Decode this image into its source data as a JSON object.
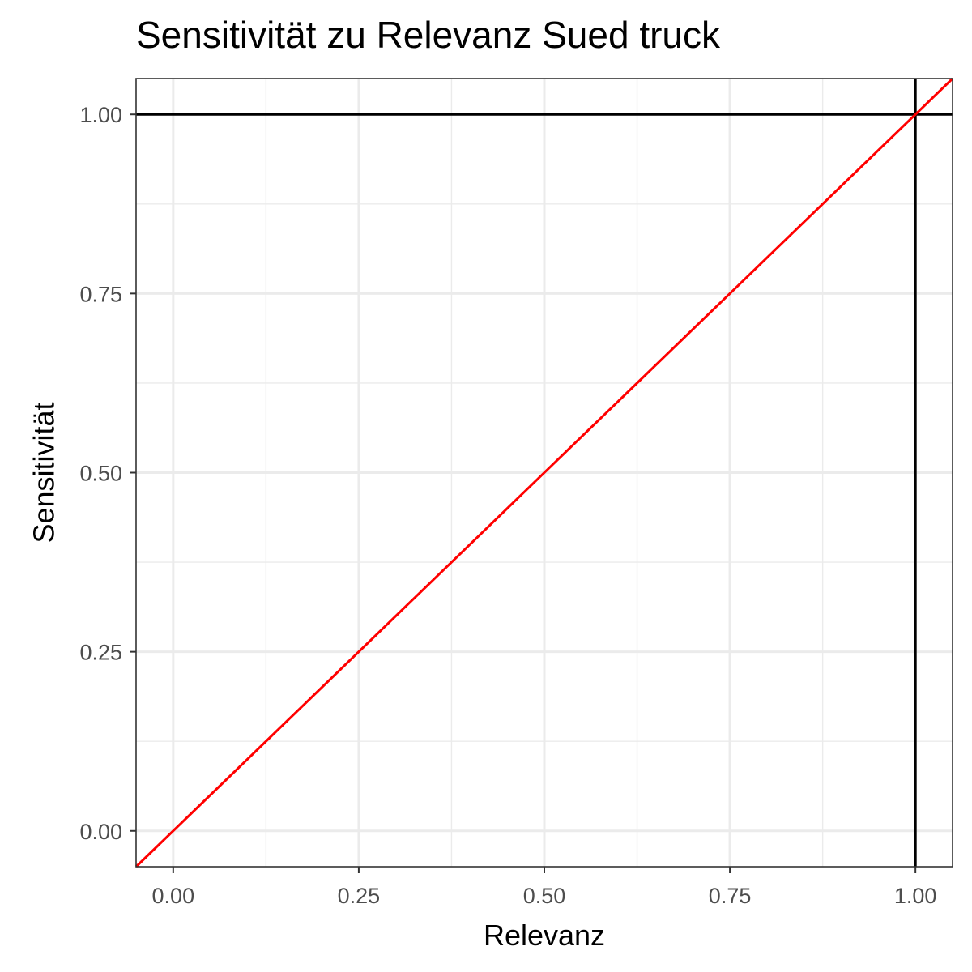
{
  "chart_data": {
    "type": "line",
    "title": "Sensitivität zu Relevanz Sued truck",
    "xlabel": "Relevanz",
    "ylabel": "Sensitivität",
    "xlim": [
      -0.05,
      1.05
    ],
    "ylim": [
      -0.05,
      1.05
    ],
    "x_ticks": [
      "0.00",
      "0.25",
      "0.50",
      "0.75",
      "1.00"
    ],
    "y_ticks": [
      "0.00",
      "0.25",
      "0.50",
      "0.75",
      "1.00"
    ],
    "grid": true,
    "legend": "none",
    "series": [
      {
        "x": [
          -0.05,
          1.05
        ],
        "y": [
          -0.05,
          1.05
        ],
        "color": "#ff0000"
      }
    ],
    "reference_lines": [
      {
        "orientation": "horizontal",
        "value": 1.0,
        "color": "#000000"
      },
      {
        "orientation": "vertical",
        "value": 1.0,
        "color": "#000000"
      }
    ]
  }
}
